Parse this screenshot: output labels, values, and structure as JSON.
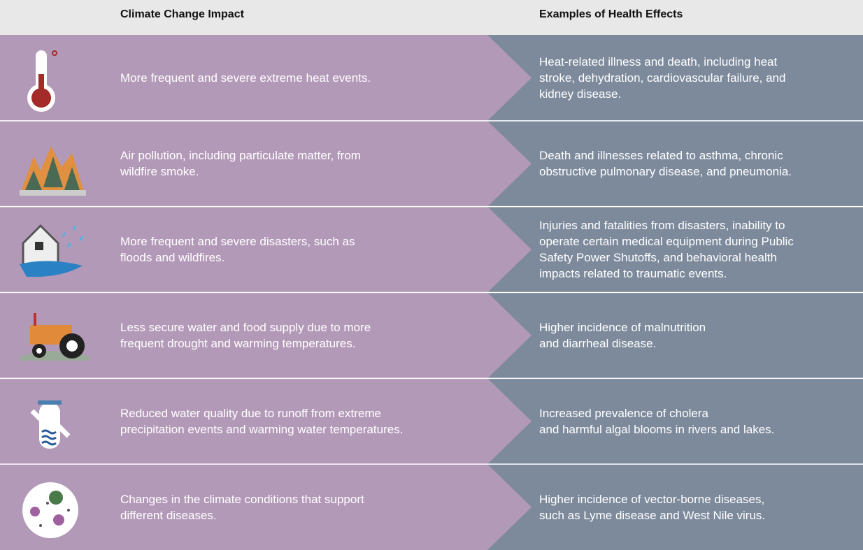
{
  "header": {
    "impact": "Climate Change Impact",
    "effects": "Examples of Health Effects"
  },
  "rows": [
    {
      "impact": [
        "More frequent and severe extreme heat events."
      ],
      "effects": [
        "Heat-related illness and death, including heat",
        "stroke, dehydration, cardiovascular failure, and",
        "kidney disease."
      ]
    },
    {
      "impact": [
        "Air pollution, including particulate matter, from",
        "wildfire smoke."
      ],
      "effects": [
        "Death and illnesses related to asthma, chronic",
        "obstructive pulmonary disease, and pneumonia."
      ]
    },
    {
      "impact": [
        "More frequent and severe disasters, such as",
        "floods and wildfires."
      ],
      "effects": [
        "Injuries and fatalities from disasters, inability to",
        "operate certain medical equipment during Public",
        "Safety Power Shutoffs, and behavioral health",
        "impacts related to traumatic events."
      ]
    },
    {
      "impact": [
        "Less secure water and food supply due to more",
        "frequent drought and warming temperatures."
      ],
      "effects": [
        "Higher incidence of malnutrition",
        "and diarrheal disease."
      ]
    },
    {
      "impact": [
        "Reduced water quality due to runoff from extreme",
        "precipitation events and warming water temperatures."
      ],
      "effects": [
        "Increased prevalence of cholera",
        "and harmful algal blooms in rivers and lakes."
      ]
    },
    {
      "impact": [
        "Changes in the climate conditions that support",
        "different diseases."
      ],
      "effects": [
        "Higher incidence of vector-borne diseases,",
        "such as Lyme disease and West Nile virus."
      ]
    }
  ]
}
